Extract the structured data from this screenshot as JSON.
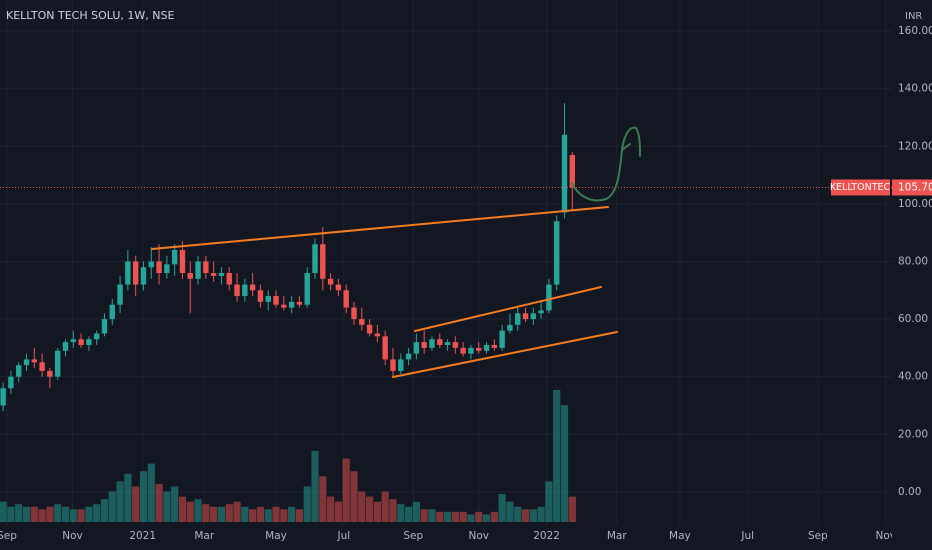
{
  "chart_data": {
    "type": "candlestick",
    "title": "KELLTON TECH SOLU, 1W, NSE",
    "currency": "INR",
    "symbol": "KELLTONTEC",
    "last_price": {
      "value": 105.7,
      "label": "105.70"
    },
    "up_color": "#26a69a",
    "down_color": "#ef5350",
    "grid": true,
    "ylim": [
      -11.5,
      170.8
    ],
    "yticks": [
      {
        "value": 0,
        "label": "0.00"
      },
      {
        "value": 20,
        "label": "20.00"
      },
      {
        "value": 40,
        "label": "40.00"
      },
      {
        "value": 60,
        "label": "60.00"
      },
      {
        "value": 80,
        "label": "80.00"
      },
      {
        "value": 100,
        "label": "100.00"
      },
      {
        "value": 120,
        "label": "120.00"
      },
      {
        "value": 140,
        "label": "140.00"
      },
      {
        "value": 160,
        "label": "160.00"
      }
    ],
    "xlim": [
      -0.4,
      114
    ],
    "xticks": [
      {
        "value": 0.5,
        "label": "Sep"
      },
      {
        "value": 8.9,
        "label": "Nov"
      },
      {
        "value": 17.9,
        "label": "2021"
      },
      {
        "value": 25.8,
        "label": "Mar"
      },
      {
        "value": 35,
        "label": "May"
      },
      {
        "value": 43.7,
        "label": "Jul"
      },
      {
        "value": 52.6,
        "label": "Sep"
      },
      {
        "value": 61,
        "label": "Nov"
      },
      {
        "value": 69.7,
        "label": "2022"
      },
      {
        "value": 78.7,
        "label": "Mar"
      },
      {
        "value": 86.8,
        "label": "May"
      },
      {
        "value": 95.5,
        "label": "Jul"
      },
      {
        "value": 104.5,
        "label": "Sep"
      },
      {
        "value": 113.2,
        "label": "Nov"
      }
    ],
    "open": [
      30,
      36,
      40,
      44,
      46,
      45,
      42,
      40,
      49,
      52,
      53,
      51,
      53,
      55,
      60,
      65,
      72,
      80,
      72,
      78,
      80,
      76,
      79,
      84,
      76,
      74,
      80,
      76,
      75,
      76,
      72,
      68,
      72,
      70,
      66,
      68,
      65,
      64,
      66,
      65,
      76,
      86,
      74,
      72,
      70,
      64,
      60,
      58,
      55,
      54,
      46,
      42,
      46,
      48,
      52,
      50,
      53,
      51,
      52,
      50,
      48,
      50,
      49,
      51,
      50,
      56,
      58,
      62,
      60,
      62,
      63,
      72,
      97,
      117
    ],
    "high": [
      38,
      42,
      45,
      48,
      50,
      48,
      43,
      50,
      53,
      56,
      55,
      54,
      56,
      62,
      67,
      75,
      84,
      82,
      80,
      85,
      86,
      82,
      86,
      87,
      80,
      82,
      82,
      80,
      78,
      78,
      76,
      74,
      76,
      72,
      70,
      70,
      68,
      68,
      68,
      78,
      88,
      92,
      76,
      74,
      72,
      66,
      64,
      60,
      58,
      56,
      50,
      48,
      50,
      55,
      56,
      54,
      55,
      53,
      54,
      52,
      51,
      52,
      52,
      53,
      58,
      62,
      64,
      64,
      64,
      66,
      74,
      96,
      135,
      118
    ],
    "low": [
      28,
      34,
      38,
      42,
      43,
      40,
      36,
      39,
      47,
      50,
      50,
      49,
      51,
      54,
      58,
      62,
      70,
      68,
      70,
      74,
      72,
      74,
      75,
      74,
      62,
      72,
      74,
      73,
      72,
      70,
      66,
      66,
      68,
      64,
      63,
      64,
      63,
      62,
      64,
      64,
      74,
      70,
      70,
      68,
      62,
      58,
      56,
      54,
      52,
      44,
      40,
      41,
      44,
      46,
      48,
      49,
      50,
      49,
      48,
      47,
      46,
      48,
      48,
      49,
      49,
      55,
      56,
      59,
      58,
      60,
      62,
      70,
      95,
      98
    ],
    "close": [
      36,
      40,
      44,
      46,
      45,
      42,
      40,
      49,
      52,
      53,
      51,
      53,
      55,
      60,
      65,
      72,
      80,
      72,
      78,
      80,
      76,
      79,
      84,
      76,
      74,
      80,
      76,
      75,
      76,
      72,
      68,
      72,
      70,
      66,
      68,
      65,
      64,
      66,
      65,
      76,
      86,
      74,
      72,
      70,
      64,
      60,
      58,
      55,
      54,
      46,
      42,
      46,
      48,
      52,
      50,
      53,
      51,
      52,
      50,
      48,
      50,
      49,
      51,
      50,
      56,
      58,
      62,
      60,
      62,
      63,
      72,
      94,
      124,
      105.7
    ],
    "volume": [
      8,
      6,
      7,
      6,
      6,
      5,
      6,
      7,
      6,
      5,
      5,
      6,
      7,
      9,
      12,
      16,
      19,
      14,
      20,
      23,
      15,
      12,
      14,
      10,
      8,
      9,
      7,
      6,
      6,
      7,
      8,
      6,
      5,
      6,
      5,
      6,
      5,
      6,
      5,
      14,
      28,
      18,
      10,
      8,
      25,
      20,
      12,
      10,
      8,
      12,
      9,
      7,
      6,
      8,
      5,
      5,
      4,
      4,
      4,
      4,
      3,
      4,
      3,
      4,
      11,
      8,
      6,
      5,
      5,
      6,
      16,
      52,
      46,
      10
    ]
  }
}
